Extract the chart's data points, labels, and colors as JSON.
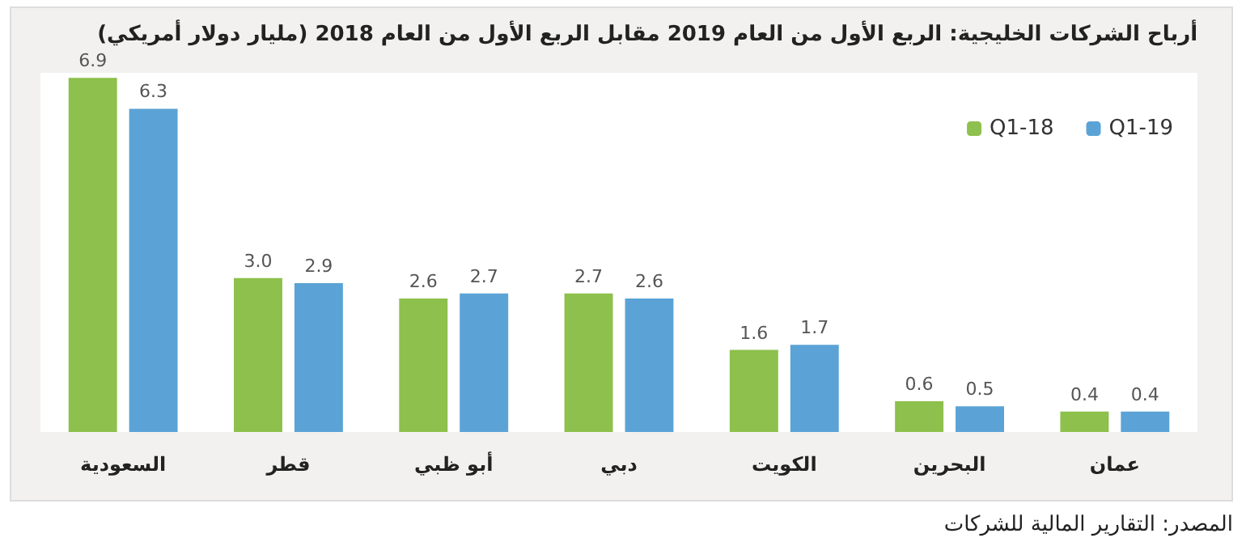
{
  "chart_data": {
    "type": "bar",
    "title": "أرباح الشركات الخليجية: الربع الأول من العام 2019 مقابل الربع الأول من العام 2018 (مليار دولار أمريكي)",
    "categories": [
      "السعودية",
      "قطر",
      "أبو ظبي",
      "دبي",
      "الكويت",
      "البحرين",
      "عمان"
    ],
    "series": [
      {
        "name": "Q1-18",
        "color": "#8dc04c",
        "values": [
          6.9,
          3.0,
          2.6,
          2.7,
          1.6,
          0.6,
          0.4
        ],
        "value_labels": [
          "6.9",
          "3.0",
          "2.6",
          "2.7",
          "1.6",
          "0.6",
          "0.4"
        ]
      },
      {
        "name": "Q1-19",
        "color": "#5ba3d6",
        "values": [
          6.3,
          2.9,
          2.7,
          2.6,
          1.7,
          0.5,
          0.4
        ],
        "value_labels": [
          "6.3",
          "2.9",
          "2.7",
          "2.6",
          "1.7",
          "0.5",
          "0.4"
        ]
      }
    ],
    "legend": "top right",
    "annotations": [
      "المصدر: التقارير المالية للشركات"
    ]
  }
}
